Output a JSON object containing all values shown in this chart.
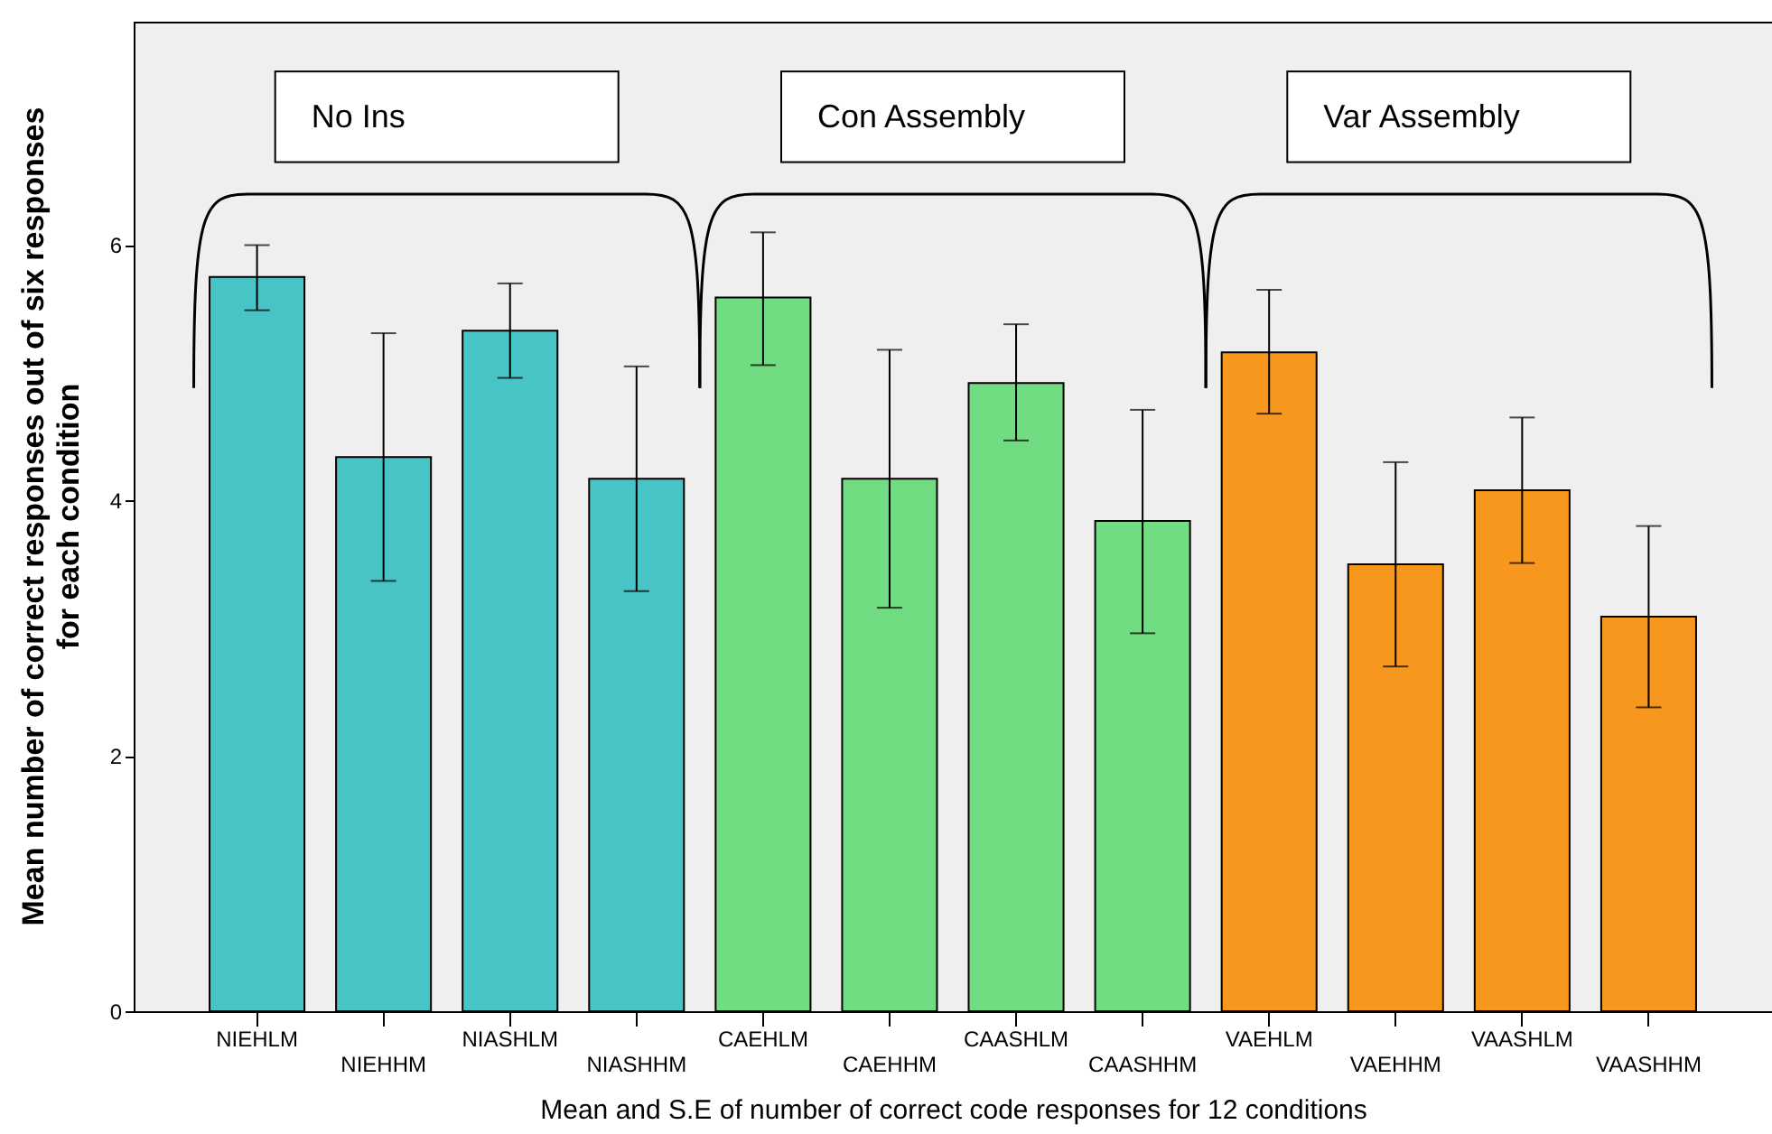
{
  "chart_data": {
    "type": "bar",
    "xlabel": "Mean and S.E of number of correct code responses for 12 conditions",
    "ylabel": "Mean number of correct responses out of six responses for each condition",
    "categories": [
      "NIEHLM",
      "NIEHHM",
      "NIASHLM",
      "NIASHHM",
      "CAEHLM",
      "CAEHHM",
      "CAASHLM",
      "CAASHHM",
      "VAEHLM",
      "VAEHHM",
      "VAASHLM",
      "VAASHHM"
    ],
    "values": [
      5.75,
      4.34,
      5.33,
      4.17,
      5.59,
      4.17,
      4.92,
      3.84,
      5.16,
      3.5,
      4.08,
      3.09
    ],
    "errors": [
      [
        5.49,
        6.0
      ],
      [
        3.37,
        5.31
      ],
      [
        4.96,
        5.7
      ],
      [
        3.29,
        5.05
      ],
      [
        5.06,
        6.1
      ],
      [
        3.16,
        5.18
      ],
      [
        4.47,
        5.38
      ],
      [
        2.96,
        4.71
      ],
      [
        4.68,
        5.65
      ],
      [
        2.7,
        4.3
      ],
      [
        3.51,
        4.65
      ],
      [
        2.38,
        3.8
      ]
    ],
    "colors": [
      "#48c3c6",
      "#48c3c6",
      "#48c3c6",
      "#48c3c6",
      "#72dc82",
      "#72dc82",
      "#72dc82",
      "#72dc82",
      "#f7971e",
      "#f7971e",
      "#f7971e",
      "#f7971e"
    ],
    "ylim": [
      0,
      7.75
    ],
    "yticks": [
      0,
      2,
      4,
      6
    ],
    "grid": false,
    "annotations": [
      "No Ins",
      "Con Assembly",
      "Var Assembly"
    ]
  }
}
